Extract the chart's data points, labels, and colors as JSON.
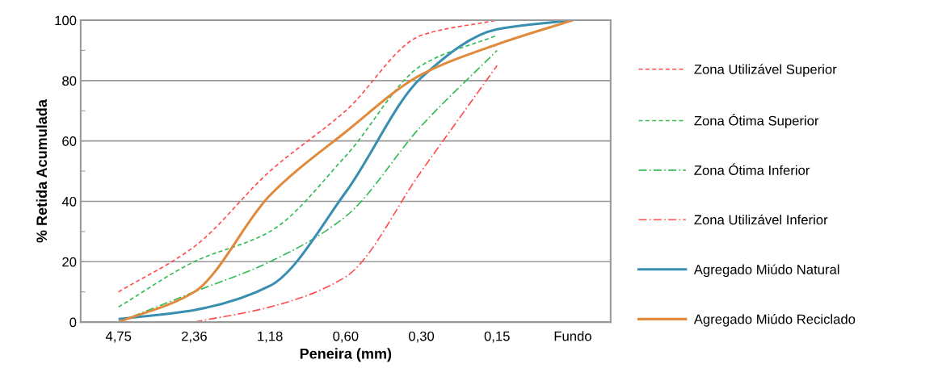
{
  "chart_data": {
    "type": "line",
    "xlabel": "Peneira (mm)",
    "ylabel": "% Retida Acumulada",
    "categories": [
      "4,75",
      "2,36",
      "1,18",
      "0,60",
      "0,30",
      "0,15",
      "Fundo"
    ],
    "ylim": [
      0,
      100
    ],
    "yticks": [
      0,
      {
        "value": 10,
        "label": null
      },
      20,
      {
        "value": 30,
        "label": null
      },
      40,
      {
        "value": 50,
        "label": null
      },
      60,
      {
        "value": 70,
        "label": null
      },
      80,
      {
        "value": 90,
        "label": null
      },
      100
    ],
    "grid": "y",
    "legend": "right",
    "marker": "none",
    "series": [
      {
        "name": "Zona Utilizável Superior",
        "color": "#ff4d4d",
        "line_style": "dashed",
        "values": [
          10,
          25,
          50,
          70,
          95,
          100,
          null
        ]
      },
      {
        "name": "Zona Ótima Superior",
        "color": "#33bb55",
        "line_style": "dashed",
        "values": [
          5,
          20,
          30,
          55,
          85,
          95,
          null
        ]
      },
      {
        "name": "Zona Ótima Inferior",
        "color": "#33bb55",
        "line_style": "dashdot",
        "values": [
          0,
          10,
          20,
          35,
          65,
          90,
          null
        ]
      },
      {
        "name": "Zona Utilizável Inferior",
        "color": "#ff4d4d",
        "line_style": "dashdot",
        "values": [
          null,
          0,
          5,
          15,
          50,
          85,
          null
        ]
      },
      {
        "name": "Agregado Miúdo Natural",
        "color": "#3a8fb0",
        "line_style": "solid",
        "values": [
          1,
          4,
          12,
          43,
          81,
          97,
          100
        ]
      },
      {
        "name": "Agregado Miúdo Reciclado",
        "color": "#e08a3c",
        "line_style": "solid",
        "values": [
          0,
          10,
          42,
          63,
          82,
          92,
          100
        ]
      }
    ]
  }
}
